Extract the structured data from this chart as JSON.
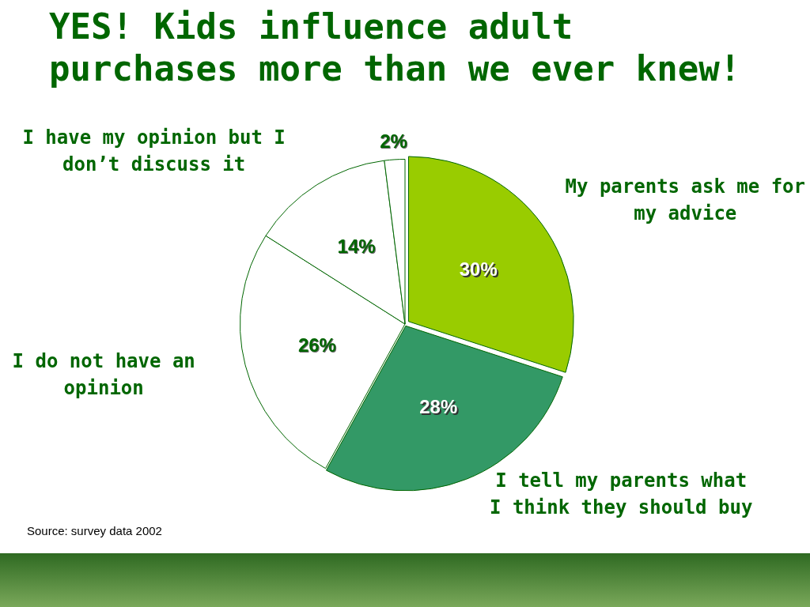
{
  "chart_data": {
    "type": "pie",
    "title": "YES! Kids influence adult purchases more than we ever knew!",
    "categories": [
      "My parents ask me for my advice",
      "I tell my parents what I think they should buy",
      "I do not have an opinion",
      "I have my opinion but I don’t discuss it",
      null
    ],
    "values": [
      30,
      28,
      26,
      14,
      2
    ],
    "colors": [
      "#99cc00",
      "#339966",
      "#ffffff",
      "#ffffff",
      "#ffffff"
    ],
    "value_labels": [
      "30%",
      "28%",
      "26%",
      "14%",
      "2%"
    ],
    "annotations": [
      "Source: survey data 2002"
    ]
  }
}
